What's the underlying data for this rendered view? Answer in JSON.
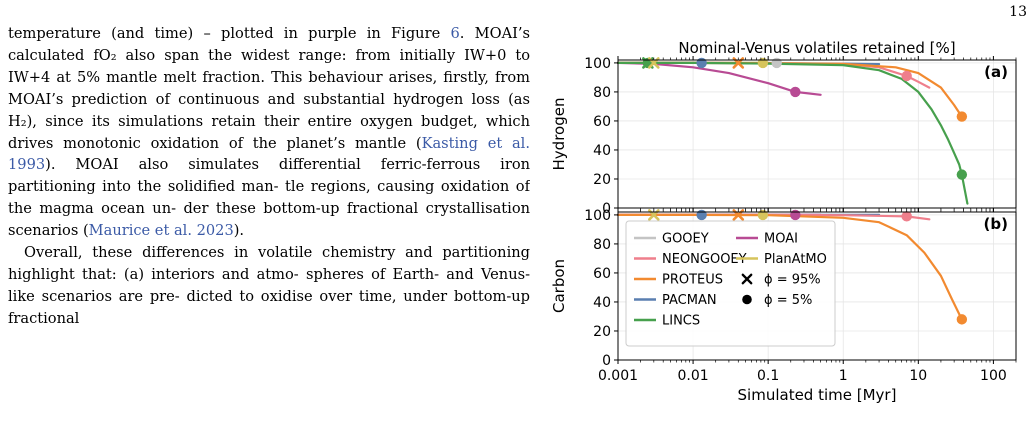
{
  "page_number": "13",
  "text": {
    "p1_l1": "temperature (and time) – plotted in purple in Figure ",
    "p1_fig": "6",
    "p1_l1_end": ".",
    "p1_l2": "MOAI’s calculated fO₂ also span the widest range: from",
    "p1_l3": "initially IW+0 to IW+4 at 5% mantle melt fraction.",
    "p1_l4": "This behaviour arises, firstly, from MOAI’s prediction",
    "p1_l5": "of continuous and substantial hydrogen loss (as H₂),",
    "p1_l6": "since its simulations retain their entire oxygen budget,",
    "p1_l7": "which drives monotonic oxidation of the planet’s mantle",
    "p1_l8_cite": "Kasting et al. 1993",
    "p1_l8_rest": "). MOAI also simulates differential",
    "p1_l9": "ferric-ferrous iron partitioning into the solidified man-",
    "p1_l10": "tle regions, causing oxidation of the magma ocean un-",
    "p1_l11": "der these bottom-up fractional crystallisation scenarios",
    "p1_l12_cite": "Maurice et al. 2023",
    "p1_l12_rest": ").",
    "p2_l1": "Overall, these differences in volatile chemistry and",
    "p2_l2": "partitioning highlight that: (a) interiors and atmo-",
    "p2_l3": "spheres of Earth- and Venus-like scenarios are pre-",
    "p2_l4": "dicted to oxidise over time, under bottom-up fractional"
  },
  "chart_data": {
    "type": "line",
    "title": "Nominal-Venus volatiles retained [%]",
    "xlabel": "Simulated time [Myr]",
    "xscale": "log",
    "xlim": [
      0.001,
      200
    ],
    "xticks": [
      "0.001",
      "0.01",
      "0.1",
      "1",
      "10",
      "100"
    ],
    "colors": {
      "GOOEY": "#c4c4c4",
      "NEONGOOEY": "#ef7f8c",
      "PROTEUS": "#f28a30",
      "PACMAN": "#5a7fb0",
      "LINCS": "#47a04d",
      "MOAI": "#b84b94",
      "PlanAtMO": "#d6c45c"
    },
    "legend": {
      "position": "lower-left",
      "entries": [
        "GOOEY",
        "NEONGOOEY",
        "PROTEUS",
        "PACMAN",
        "LINCS",
        "MOAI",
        "PlanAtMO"
      ],
      "marker_entries": [
        "ϕ = 95%",
        "ϕ = 5%"
      ]
    },
    "panels": [
      {
        "label": "(a)",
        "ylabel": "Hydrogen",
        "ylim": [
          0,
          102
        ],
        "yticks": [
          0,
          20,
          40,
          60,
          80,
          100
        ],
        "grid": true,
        "series": [
          {
            "name": "GOOEY",
            "x": [
              0.002,
              0.13
            ],
            "y": [
              100,
              100
            ]
          },
          {
            "name": "PlanAtMO",
            "x": [
              0.002,
              0.085
            ],
            "y": [
              100,
              100
            ]
          },
          {
            "name": "PACMAN",
            "x": [
              0.001,
              0.01,
              0.1,
              1,
              3
            ],
            "y": [
              100,
              100,
              99.8,
              99.5,
              99.2
            ]
          },
          {
            "name": "NEONGOOEY",
            "x": [
              0.001,
              0.01,
              0.1,
              1,
              3,
              7,
              10,
              14
            ],
            "y": [
              100,
              100,
              99.8,
              99.3,
              97,
              91,
              87,
              83
            ]
          },
          {
            "name": "MOAI",
            "x": [
              0.001,
              0.003,
              0.01,
              0.03,
              0.1,
              0.23,
              0.5
            ],
            "y": [
              100,
              99.3,
              97,
              93,
              86,
              80,
              78
            ]
          },
          {
            "name": "PROTEUS",
            "x": [
              0.001,
              0.01,
              0.1,
              1,
              5,
              10,
              20,
              30,
              38
            ],
            "y": [
              100,
              100,
              99.8,
              99.3,
              97,
              93,
              83,
              71,
              63
            ]
          },
          {
            "name": "LINCS",
            "x": [
              0.001,
              0.01,
              0.1,
              1,
              3,
              6,
              10,
              15,
              20,
              25,
              30,
              35,
              38,
              45
            ],
            "y": [
              100,
              100,
              99.5,
              98.5,
              95,
              89,
              80,
              68,
              57,
              47,
              38,
              30,
              23,
              3
            ]
          }
        ],
        "markers": [
          {
            "series": "LINCS",
            "symbol": "x",
            "x": 0.0025,
            "y": 100
          },
          {
            "series": "LINCS",
            "symbol": "dot",
            "x": 0.0025,
            "y": 100
          },
          {
            "series": "PlanAtMO",
            "symbol": "x",
            "x": 0.003,
            "y": 100
          },
          {
            "series": "PACMAN",
            "symbol": "dot",
            "x": 0.013,
            "y": 100
          },
          {
            "series": "PROTEUS",
            "symbol": "x",
            "x": 0.04,
            "y": 100
          },
          {
            "series": "PlanAtMO",
            "symbol": "dot",
            "x": 0.085,
            "y": 100
          },
          {
            "series": "GOOEY",
            "symbol": "dot",
            "x": 0.13,
            "y": 100
          },
          {
            "series": "MOAI",
            "symbol": "dot",
            "x": 0.23,
            "y": 80
          },
          {
            "series": "NEONGOOEY",
            "symbol": "dot",
            "x": 7,
            "y": 91
          },
          {
            "series": "PROTEUS",
            "symbol": "dot",
            "x": 38,
            "y": 63
          },
          {
            "series": "LINCS",
            "symbol": "dot",
            "x": 38,
            "y": 23
          }
        ]
      },
      {
        "label": "(b)",
        "ylabel": "Carbon",
        "ylim": [
          0,
          102
        ],
        "yticks": [
          0,
          20,
          40,
          60,
          80,
          100
        ],
        "grid": true,
        "series": [
          {
            "name": "GOOEY",
            "x": [
              0.002,
              0.13
            ],
            "y": [
              100,
              100
            ]
          },
          {
            "name": "PlanAtMO",
            "x": [
              0.002,
              0.085
            ],
            "y": [
              100,
              100
            ]
          },
          {
            "name": "PACMAN",
            "x": [
              0.001,
              0.01,
              0.1,
              1,
              3
            ],
            "y": [
              100,
              100,
              100,
              100,
              100
            ]
          },
          {
            "name": "MOAI",
            "x": [
              0.001,
              0.01,
              0.1,
              0.23,
              0.5
            ],
            "y": [
              100,
              100,
              100,
              100,
              100
            ]
          },
          {
            "name": "NEONGOOEY",
            "x": [
              0.001,
              0.1,
              1,
              7,
              14
            ],
            "y": [
              100,
              100,
              99.8,
              99,
              97
            ]
          },
          {
            "name": "PROTEUS",
            "x": [
              0.001,
              0.01,
              0.1,
              1,
              3,
              7,
              12,
              20,
              28,
              38
            ],
            "y": [
              100,
              100,
              99.8,
              98,
              95,
              86,
              74,
              58,
              42,
              28
            ]
          }
        ],
        "markers": [
          {
            "series": "PlanAtMO",
            "symbol": "x",
            "x": 0.003,
            "y": 100
          },
          {
            "series": "PACMAN",
            "symbol": "dot",
            "x": 0.013,
            "y": 100
          },
          {
            "series": "PROTEUS",
            "symbol": "x",
            "x": 0.04,
            "y": 100
          },
          {
            "series": "PlanAtMO",
            "symbol": "dot",
            "x": 0.085,
            "y": 100
          },
          {
            "series": "MOAI",
            "symbol": "dot",
            "x": 0.23,
            "y": 100
          },
          {
            "series": "NEONGOOEY",
            "symbol": "dot",
            "x": 7,
            "y": 99
          },
          {
            "series": "PROTEUS",
            "symbol": "dot",
            "x": 38,
            "y": 28
          }
        ]
      }
    ]
  }
}
